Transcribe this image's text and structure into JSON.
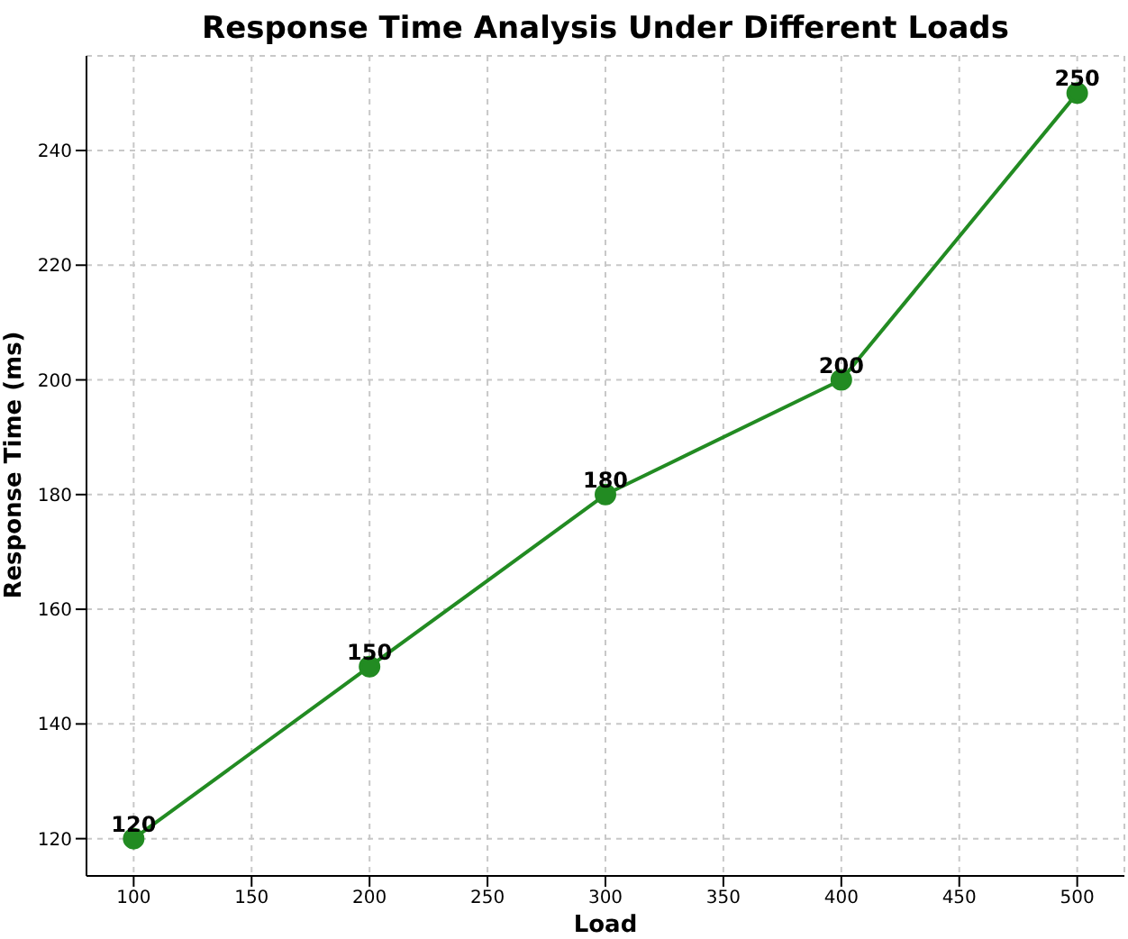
{
  "chart_data": {
    "type": "line",
    "title": "Response Time Analysis Under Different Loads",
    "xlabel": "Load",
    "ylabel": "Response Time (ms)",
    "x": [
      100,
      200,
      300,
      400,
      500
    ],
    "series": [
      {
        "color": "#228b22",
        "values": [
          120,
          150,
          180,
          200,
          250
        ]
      }
    ],
    "xlim": [
      80,
      520
    ],
    "ylim": [
      113.5,
      256.5
    ],
    "xticks": [
      100,
      150,
      200,
      250,
      300,
      350,
      400,
      450,
      500
    ],
    "yticks": [
      120,
      140,
      160,
      180,
      200,
      220,
      240
    ],
    "grid": true,
    "marker": "circle",
    "line_style": "solid",
    "data_labels": true
  }
}
